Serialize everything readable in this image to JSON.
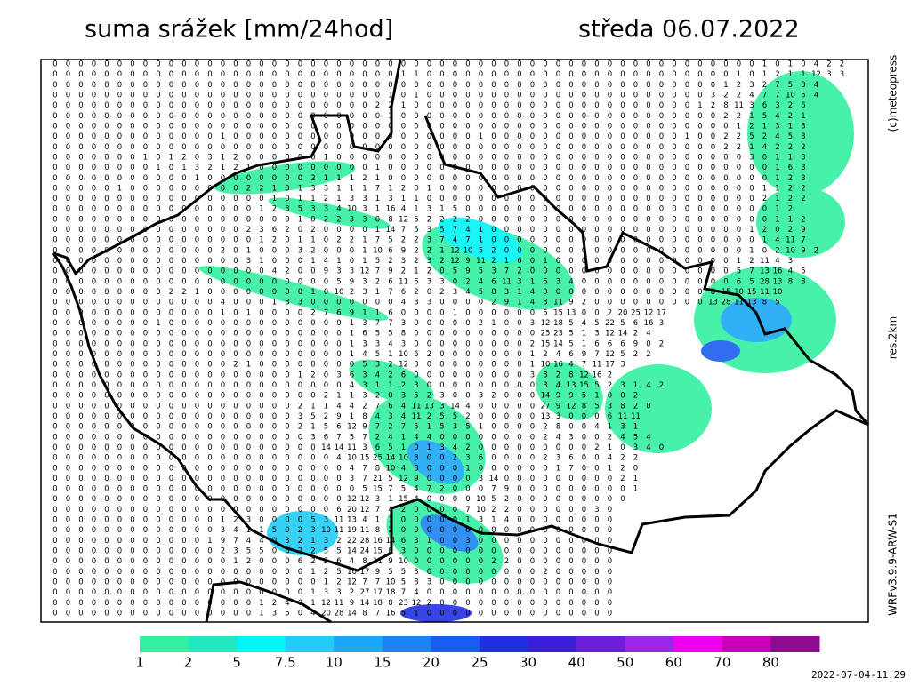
{
  "header": {
    "title": "suma srážek [mm/24hod]",
    "date": "středa 06.07.2022"
  },
  "side": {
    "credit": "(c)meteopress",
    "resolution": "res.2km",
    "model": "WRFv3.9.9-ARW-S1"
  },
  "timestamp": "2022-07-04-11:29",
  "legend": {
    "labels": [
      "1",
      "2",
      "5",
      "7.5",
      "10",
      "15",
      "20",
      "25",
      "30",
      "40",
      "50",
      "60",
      "70",
      "80"
    ],
    "colors": [
      "#33f0a0",
      "#22e8c0",
      "#00f5f5",
      "#22ccf5",
      "#1aa8f5",
      "#1a84f0",
      "#1a5cf0",
      "#2030e0",
      "#3a1ed8",
      "#6a1ed8",
      "#9a28e8",
      "#f000f0",
      "#c800b8",
      "#8c0c8c"
    ]
  },
  "grid": {
    "rows": [
      "0 0 0 0 0 0 0 0 0 0 0 0 0 0 0 0 0 0 0 0 0 0 0 0 0 0 0 0 0 0 0 0 0 0 0 0 0 0 0 0 0 0 0 0 0 0 0 0 0 0 0 0 0 0 0 1 0 1 0 4 2 2",
      "0 0 0 0 0 0 0 0 0 0 0 0 0 0 0 0 0 0 0 0 0 0 0 0 0 0 0 1 1 0 0 0 0 0 0 0 0 0 0 0 0 0 0 0 0 0 0 0 0 0 0 0 0 1 0 1 2 1 1 12 3 3",
      "0 0 0 0 0 0 0 0 0 0 0 0 0 0 0 0 0 0 0 0 0 0 0 0 0 0 0 0 0 0 0 0 0 0 0 0 0 0 0 0 0 0 0 0 0 0 0 0 0 0 0 0 1 2 3 2 7 5 3 4",
      "0 0 0 0 0 0 0 0 0 0 0 0 0 0 0 0 0 0 0 0 0 0 0 0 0 0 1 0 1 0 0 0 0 0 0 0 0 0 0 0 0 0 0 0 0 0 0 0 0 0 0 3 2 2 4 7 7 10 5 4",
      "0 0 0 0 0 0 0 0 0 0 0 0 0 0 0 0 0 0 0 0 0 0 0 0 0 2 2 1 0 0 0 0 0 0 0 0 0 0 0 0 0 0 0 0 0 0 0 0 0 0 1 2 8 11 3 6 3 2 6",
      "0 0 0 0 0 0 0 0 0 0 0 0 0 0 0 0 0 0 0 0 0 0 0 0 0 0 1 0 0 0 0 0 0 0 0 0 0 0 0 0 0 0 0 0 0 0 0 0 0 0 0 0 2 2 1 5 4 2 1",
      "0 0 0 0 0 0 0 0 0 0 0 0 0 0 0 0 0 0 0 0 0 0 0 0 0 0 0 0 0 0 0 0 0 0 0 0 0 0 0 0 0 0 0 0 0 0 0 0 0 0 0 0 0 1 2 1 3 1 3",
      "0 0 0 0 0 0 0 0 0 0 0 0 0 1 0 0 0 0 0 0 0 0 0 0 0 0 0 0 0 0 0 0 0 1 0 0 0 0 0 0 0 0 0 0 0 0 0 0 0 1 0 0 2 2 5 2 4 5 3",
      "0 0 0 0 0 0 0 0 0 0 0 0 0 0 0 0 0 0 0 0 0 0 0 0 0 0 0 0 0 0 0 0 0 0 0 0 0 0 0 0 0 0 0 0 0 0 0 0 0 0 0 0 2 2 1 4 2 2 2",
      "0 0 0 0 0 0 0 1 0 1 2 0 3 1 2 0 0 0 0 0 0 1 0 0 0 0 0 0 0 0 0 0 0 0 0 0 0 0 0 0 0 0 0 0 0 0 0 0 0 0 0 0 0 0 3 0 1 1 3",
      "0 0 0 0 0 0 0 0 1 0 1 3 2 1 2 1 0 0 0 0 0 0 0 0 0 1 0 0 0 0 0 0 0 0 0 0 0 0 0 0 0 0 0 0 0 0 0 0 0 0 0 0 0 0 0 0 1 6 3",
      "0 0 0 0 0 0 0 0 0 0 0 1 0 0 0 0 0 0 0 0 2 1 1 1 2 1 0 0 0 0 0 0 0 0 0 0 0 0 0 0 0 0 0 0 0 0 0 0 0 0 0 0 0 0 0 0 1 2 3",
      "0 0 0 0 0 1 0 0 0 0 0 0 0 0 0 2 2 1 0 1 3 3 1 1 1 7 1 2 0 1 0 0 0 0 0 0 0 0 0 0 0 0 0 0 0 0 0 0 0 0 0 0 0 0 0 1 1 2 2",
      "0 0 0 0 0 0 0 0 0 0 0 0 0 0 0 0 0 1 0 1 1 2 1 3 3 1 3 1 1 0 0 0 0 0 0 0 0 0 0 0 0 0 0 0 0 0 0 0 0 0 0 0 0 0 0 2 1 2 2",
      "0 0 0 0 0 0 0 0 0 0 0 0 0 0 0 0 1 2 3 5 3 3 4 10 3 1 16 4 1 3 1 5 0 0 0 0 0 0 0 0 0 0 0 0 0 0 0 0 0 0 0 0 0 0 0 0 1 2",
      "0 0 0 0 0 0 0 0 0 0 0 0 0 0 0 0 0 0 0 1 0 2 2 3 3 0 8 12 5 2 2 2 2 0 0 0 0 0 0 0 0 0 0 0 0 0 0 0 0 0 0 0 0 0 0 0 1 1 2",
      "0 0 0 0 0 0 0 0 0 0 0 0 0 0 0 2 3 6 2 0 2 0 0 0 0 1 14 7 5 3 5 7 4 1 0 0 0 0 0 0 0 0 0 0 0 0 0 0 0 0 0 0 0 0 1 2 0 2 9",
      "0 0 0 0 0 0 0 0 0 0 0 0 0 0 0 0 1 2 0 1 1 0 2 2 1 7 5 2 2 3 7 4 7 1 0 0 0 0 0 0 0 0 0 0 0 0 0 0 0 0 0 0 0 0 0 1 4 11 7",
      "0 0 0 0 0 0 0 0 0 0 0 0 0 2 0 1 0 0 0 3 2 0 0 0 1 10 6 9 2 2 1 12 10 5 2 0 0 0 0 0 0 0 0 0 0 0 0 0 0 0 0 0 0 0 1 0 2 10 9 2",
      "0 0 0 0 0 0 0 0 0 0 0 0 0 0 0 3 1 0 0 0 1 4 1 0 1 5 2 3 2 3 2 12 9 11 2 1 6 0 1 0 0 0 0 0 0 0 0 0 0 0 0 0 0 1 2 11 4 3",
      "0 0 0 0 0 0 0 0 0 0 0 0 0 0 0 0 0 4 2 0 0 9 3 3 12 7 9 2 1 2 0 5 9 5 3 7 2 0 0 0 0 0 0 0 0 0 0 0 0 0 0 0 0 5 7 13 16 4 5",
      "0 0 0 0 0 0 0 0 0 0 0 0 0 0 0 0 0 0 0 0 0 0 5 9 3 2 6 11 6 3 3 0 2 4 6 11 3 1 6 3 4 0 0 0 0 0 0 0 0 0 0 0 0 6 5 28 13 8 8",
      "0 0 0 0 0 0 0 0 0 2 2 1 0 0 0 0 0 0 0 0 1 0 10 2 3 1 7 6 2 0 2 3 4 5 8 3 1 4 0 0 0 0 0 0 0 0 0 0 0 0 0 8 15 10 15 11 10",
      "0 0 0 0 0 0 0 0 0 0 0 0 0 4 0 0 0 1 3 3 0 0 0 0 0 0 0 4 3 3 0 0 0 0 2 9 1 4 3 11 9 2 0 0 0 0 0 0 0 0 0 13 28 11 13 8 5",
      "0 0 0 0 0 0 0 0 0 0 0 0 0 1 0 1 0 0 0 0 2 7 6 9 1 1 6 0 0 0 0 1 0 0 0 0 0 0 5 15 13 0 0 2 20 25 12 17",
      "0 0 0 0 0 0 0 0 1 0 0 0 0 0 0 0 0 0 0 0 0 0 0 1 3 7 7 3 0 0 0 0 0 2 1 0 0 3 12 18 5 4 5 22 5 6 16 3",
      "0 0 0 0 0 0 0 0 0 0 0 0 0 0 0 0 0 0 0 0 0 0 0 1 6 5 5 8 0 0 0 0 0 0 0 0 0 0 25 23 5 1 3 12 14 2 4",
      "0 0 0 0 0 0 0 0 0 0 0 0 0 0 0 0 0 0 0 0 0 0 0 1 3 3 4 3 0 0 0 0 0 0 0 0 0 2 15 14 5 1 6 6 6 9 0 2",
      "0 0 0 0 0 0 0 0 0 0 0 0 0 0 0 0 0 0 0 0 0 0 0 1 4 5 1 10 6 2 0 0 0 0 0 0 0 1 2 4 6 9 7 12 5 2 2",
      "0 0 0 0 0 0 0 0 0 0 0 0 0 0 2 1 0 0 0 0 0 0 0 0 5 3 2 12 3 0 0 0 0 0 0 0 0 1 10 16 4 7 11 17 3",
      "0 0 0 0 0 0 0 0 0 0 0 0 0 0 0 0 0 0 0 1 2 0 3 6 3 4 2 6 0 0 0 0 0 0 0 0 0 3 8 2 8 12 16 2",
      "0 0 0 0 0 0 0 0 0 0 0 0 0 0 0 0 0 0 0 0 0 0 0 4 3 1 1 2 3 0 0 0 0 0 0 0 0 0 8 4 13 15 5 2 3 1 4 2",
      "0 0 0 0 0 0 0 0 0 0 0 0 0 0 0 0 0 0 0 0 0 2 1 1 3 2 0 3 5 2 3 0 0 3 2 0 0 0 14 9 9 5 1 0 0 2",
      "0 0 0 0 0 0 0 0 0 0 0 0 0 0 0 0 0 0 0 2 1 1 4 4 2 7 6 4 11 13 3 14 4 0 0 0 0 0 27 9 12 8 5 3 8 2 0",
      "0 0 0 0 0 0 0 0 0 0 0 0 0 0 0 0 0 0 0 3 5 2 9 1 8 4 3 4 11 2 5 5 2 0 0 0 0 0 13 3 0 0 0 6 11 11",
      "0 0 0 0 0 0 0 0 0 0 0 0 0 0 0 0 0 0 0 2 1 5 6 12 9 7 2 7 5 1 5 3 5 1 0 0 0 0 2 8 0 0 4 1 3 1",
      "0 0 0 0 0 0 0 0 0 0 0 0 0 0 0 0 0 0 0 0 3 6 7 5 7 2 4 1 4 4 0 0 0 0 0 0 0 0 2 4 3 0 0 2 4 5 4",
      "0 0 0 0 0 0 0 0 0 0 0 0 0 0 0 0 0 0 0 0 0 14 14 11 3 6 5 1 0 1 3 4 2 0 0 0 0 0 0 0 0 0 2 1 0 3 4 0",
      "0 0 0 0 0 0 0 0 0 0 0 0 0 0 0 0 0 0 0 0 0 0 4 10 15 25 14 10 3 0 0 2 3 6 0 0 0 0 2 3 6 0 0 4 2 2",
      "0 0 0 0 0 0 0 0 0 0 0 0 0 0 0 0 0 0 0 0 0 0 0 4 7 8 10 4 8 0 0 0 1 0 0 0 0 0 0 1 7 0 0 1 2 0",
      "0 0 0 0 0 0 0 0 0 0 0 0 0 0 0 0 0 0 0 0 0 0 0 3 7 21 5 12 9 0 0 0 0 3 14 0 0 0 0 0 0 0 0 0 2 1",
      "0 0 0 0 0 0 0 0 0 0 0 0 0 0 0 0 0 0 0 0 0 0 0 0 5 15 7 5 4 7 2 0 0 0 7 9 0 0 0 0 0 0 0 0 0 1",
      "0 0 0 0 0 0 0 0 0 0 0 0 0 0 0 0 0 0 0 0 0 0 0 12 12 3 1 15 4 0 0 0 0 10 5 2 0 0 0 0 0 0 0 0 0",
      "0 0 0 0 0 0 0 0 0 0 0 0 0 0 0 0 0 0 0 0 0 0 6 20 12 7 4 2 0 0 0 0 7 10 2 2 0 0 0 0 0 0 3 0",
      "0 0 0 0 0 0 0 0 0 0 0 0 0 1 2 3 0 0 0 0 5 3 11 13 4 1 1 0 0 0 0 0 1 3 1 4 0 0 0 0 0 0 0 0",
      "0 0 0 0 0 0 0 0 0 0 0 0 0 3 4 1 1 5 0 2 3 10 11 19 11 8 2 0 0 0 0 0 0 0 0 0 0 0 0 0 0 0 0 0",
      "0 0 0 0 0 0 0 0 0 0 0 0 1 9 7 4 4 0 3 2 1 3 2 22 28 16 14 6 3 1 0 0 3 0 0 0 0 0 0 0 0 0 0 0",
      "0 0 0 0 0 0 0 0 0 0 0 0 0 2 3 5 5 0 6 2 2 5 5 14 24 15 8 3 0 0 0 0 0 0 0 0 0 0 0 0 0 0 0 0",
      "0 0 0 0 0 0 0 0 0 0 0 0 0 0 1 2 0 0 0 6 2 2 6 4 8 11 9 10 0 0 0 0 0 0 2 2 0 0 0 0 0 0 0 0",
      "0 0 0 0 0 0 0 0 0 0 0 0 0 0 0 0 0 0 0 0 1 2 5 16 17 9 5 5 3 0 0 0 0 0 0 0 0 0 2 0 0 0 0 0",
      "0 0 0 0 0 0 0 0 0 0 0 0 0 0 0 0 0 0 0 0 0 1 2 12 7 7 10 5 8 3 0 0 0 0 0 0 0 0 0 0 0 0 0 0",
      "0 0 0 0 0 0 0 0 0 0 0 0 0 0 0 0 0 0 0 0 1 3 3 2 27 17 18 7 4 0 0 0 0 0 0 0 0 0 0 0 0 0 0 0",
      "0 0 0 0 0 0 0 0 0 0 0 0 0 0 0 0 1 2 4 0 1 12 11 9 14 18 8 23 12 2 0 0 0 0 0 0 0 0 0 0 0 0 0 0",
      "0 0 0 0 0 0 0 0 0 0 0 0 0 0 0 0 1 3 5 0 4 20 28 14 8 7 16 5 1 0 0 0 0 0 0 0 0 0 0 0 0 0 0 0"
    ]
  }
}
